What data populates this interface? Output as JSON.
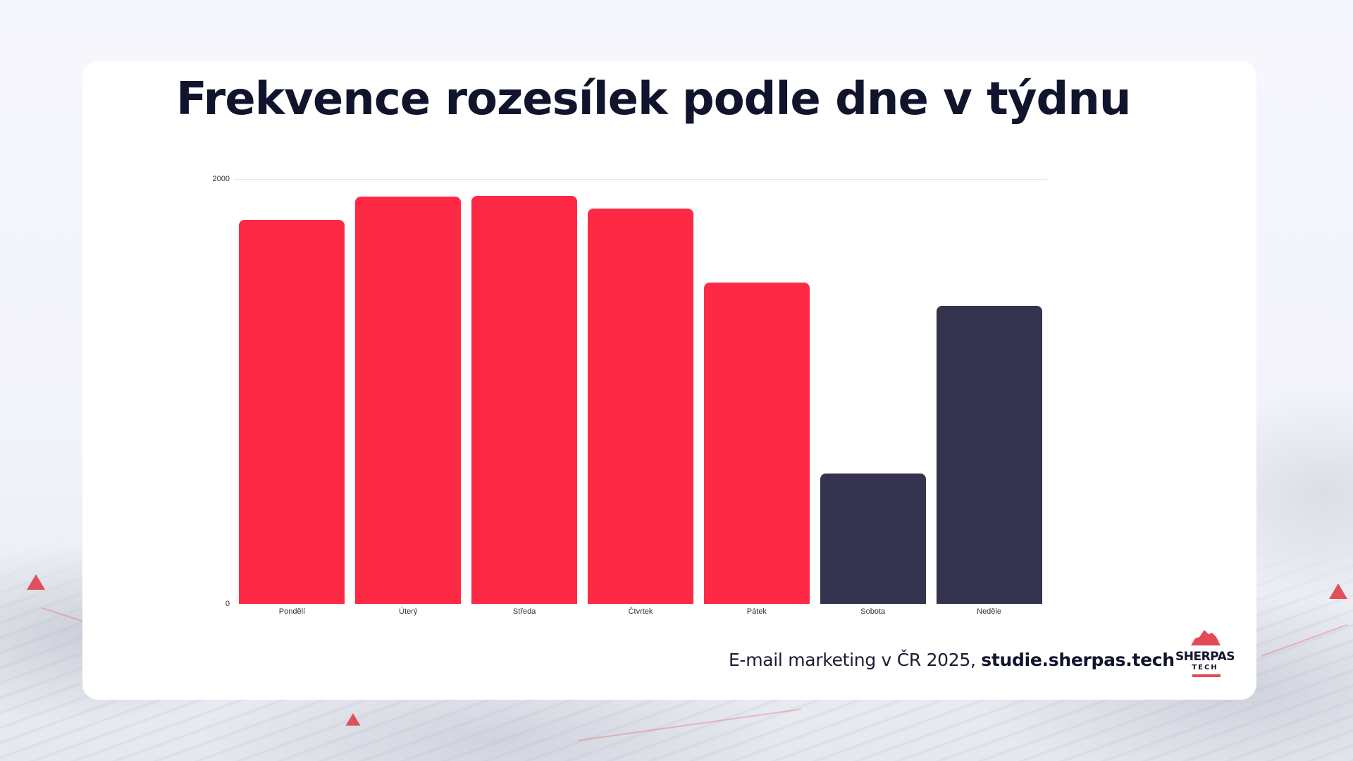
{
  "slide": {
    "title": "Frekvence rozesílek podle dne v týdnu",
    "source_text": "E-mail marketing v ČR 2025, ",
    "source_link": "studie.sherpas.tech",
    "logo": {
      "name": "SHERPAS",
      "sub": "TECH"
    }
  },
  "colors": {
    "weekday": "#fe2a45",
    "weekend": "#33334d",
    "title": "#11142d",
    "gridline": "#e4e4e8",
    "background": "#f5f6fc",
    "card": "#ffffff"
  },
  "chart_data": {
    "type": "bar",
    "title": "Frekvence rozesílek podle dne v týdnu",
    "categories": [
      "Pondělí",
      "Úterý",
      "Středa",
      "Čtvrtek",
      "Pátek",
      "Sobota",
      "Neděle"
    ],
    "values": [
      1808,
      1917,
      1920,
      1861,
      1512,
      614,
      1403
    ],
    "bar_colors": [
      "#fe2a45",
      "#fe2a45",
      "#fe2a45",
      "#fe2a45",
      "#fe2a45",
      "#33334d",
      "#33334d"
    ],
    "xlabel": "",
    "ylabel": "",
    "ylim": [
      0,
      2000
    ],
    "yticks": [
      0,
      2000
    ],
    "ytick_labels": [
      "0",
      "2000"
    ],
    "grid": true,
    "legend": null
  }
}
